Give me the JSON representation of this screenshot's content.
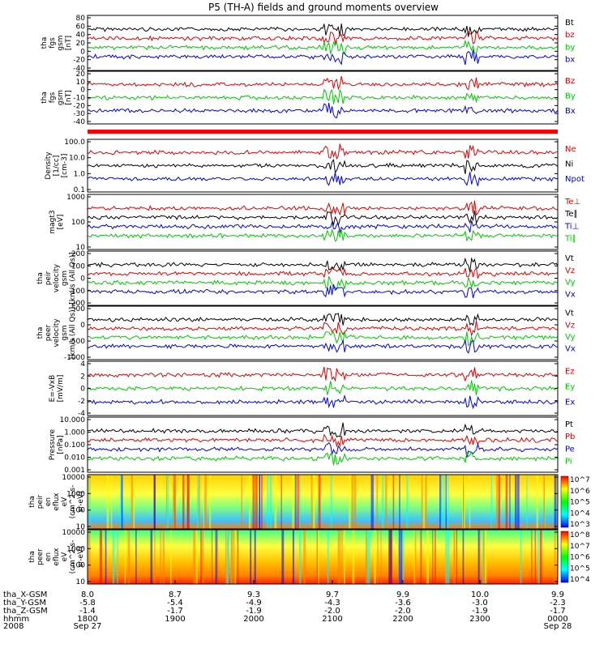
{
  "title": "P5 (TH-A) fields and ground moments overview",
  "colors": {
    "black": "#000000",
    "red": "#e00000",
    "green": "#00c800",
    "blue": "#0000e0",
    "quality_bar": "#ff0000"
  },
  "chart_data": [
    {
      "type": "line",
      "ylabel": [
        "tha",
        "fgs",
        "gsm",
        "[nT]"
      ],
      "ylim": [
        -40,
        80
      ],
      "yticks": [
        "80",
        "60",
        "40",
        "20",
        "0",
        "-20",
        "-40"
      ],
      "series": [
        {
          "name": "Bt",
          "color": "black",
          "level": 55
        },
        {
          "name": "bz",
          "color": "red",
          "level": 50
        },
        {
          "name": "by",
          "color": "green",
          "level": -2
        },
        {
          "name": "bx",
          "color": "blue",
          "level": 10
        }
      ]
    },
    {
      "type": "line",
      "ylabel": [
        "tha",
        "fgs",
        "gsm",
        "[nT]"
      ],
      "ylim": [
        -45,
        20
      ],
      "yticks": [
        "20",
        "10",
        "0",
        "-10",
        "-20",
        "-30",
        "-40"
      ],
      "series": [
        {
          "name": "Bz",
          "color": "red",
          "level": -5
        },
        {
          "name": "By",
          "color": "green",
          "level": 2
        },
        {
          "name": "Bx",
          "color": "blue",
          "level": 0
        }
      ]
    },
    {
      "type": "line",
      "ylabel": [
        "Density",
        "[1/cc]",
        "[cm-3]"
      ],
      "scale": "log",
      "yticks": [
        "100.0",
        "10.0",
        "1.0",
        "0.1"
      ],
      "series": [
        {
          "name": "Ne",
          "color": "red",
          "level": 2
        },
        {
          "name": "Ni",
          "color": "black",
          "level": 0.8
        },
        {
          "name": "Npot",
          "color": "blue",
          "level": 3
        }
      ]
    },
    {
      "type": "line",
      "ylabel": [
        "magt3",
        "[eV]"
      ],
      "scale": "log",
      "yticks": [
        "1000",
        "100",
        "10"
      ],
      "series": [
        {
          "name": "Te⊥",
          "color": "red",
          "level": 500
        },
        {
          "name": "Te∥",
          "color": "black",
          "level": 700
        },
        {
          "name": "Ti⊥",
          "color": "blue",
          "level": 2500
        },
        {
          "name": "Ti∥",
          "color": "green",
          "level": 1500
        }
      ]
    },
    {
      "type": "line",
      "ylabel": [
        "tha",
        "peir",
        "velocity",
        "gsm",
        "[km/s (All Qs)]"
      ],
      "ylim": [
        -200,
        200
      ],
      "yticks": [
        "200",
        "100",
        "0",
        "-100",
        "-200"
      ],
      "series": [
        {
          "name": "Vt",
          "color": "black",
          "level": 20
        },
        {
          "name": "Vz",
          "color": "red",
          "level": 0
        },
        {
          "name": "Vy",
          "color": "green",
          "level": 0
        },
        {
          "name": "Vx",
          "color": "blue",
          "level": 0
        }
      ]
    },
    {
      "type": "line",
      "ylabel": [
        "tha",
        "peer",
        "velocity",
        "gsm",
        "[km/s (All Qs)]"
      ],
      "ylim": [
        -1000,
        500
      ],
      "yticks": [
        "500",
        "0",
        "-500",
        "-1000"
      ],
      "series": [
        {
          "name": "Vt",
          "color": "black",
          "level": 40
        },
        {
          "name": "Vz",
          "color": "red",
          "level": 0
        },
        {
          "name": "Vy",
          "color": "green",
          "level": 0
        },
        {
          "name": "Vx",
          "color": "blue",
          "level": 0
        }
      ]
    },
    {
      "type": "line",
      "ylabel": [
        "E=-VxB",
        "[mV/m]"
      ],
      "ylim": [
        -4,
        4
      ],
      "yticks": [
        "4",
        "2",
        "0",
        "-2",
        "-4"
      ],
      "series": [
        {
          "name": "Ez",
          "color": "red",
          "level": 0
        },
        {
          "name": "Ey",
          "color": "green",
          "level": 0.3
        },
        {
          "name": "Ex",
          "color": "blue",
          "level": -0.2
        }
      ]
    },
    {
      "type": "line",
      "ylabel": [
        "Pressure",
        "[nPa]"
      ],
      "scale": "log",
      "yticks": [
        "10.000",
        "1.000",
        "0.100",
        "0.010",
        "0.001"
      ],
      "series": [
        {
          "name": "Pt",
          "color": "black",
          "level": 1.0
        },
        {
          "name": "Pb",
          "color": "red",
          "level": 0.9
        },
        {
          "name": "Pe",
          "color": "blue",
          "level": 0.1
        },
        {
          "name": "Pi",
          "color": "green",
          "level": 0.02
        }
      ]
    },
    {
      "type": "heatmap",
      "ylabel": [
        "tha",
        "peir",
        "en",
        "eflux",
        "eV",
        "(cm^2-s-",
        "sr-eV)"
      ],
      "yticks": [
        "10000",
        "1000",
        "100",
        "10"
      ],
      "colorbar": [
        "10^7",
        "10^6",
        "10^5",
        "10^4",
        "10^3"
      ]
    },
    {
      "type": "heatmap",
      "ylabel": [
        "tha",
        "peer",
        "en",
        "eflux",
        "eV",
        "(cm^2-s-",
        "sr-eV)"
      ],
      "yticks": [
        "10000",
        "1000",
        "100",
        "10"
      ],
      "colorbar": [
        "10^8",
        "10^7",
        "10^6",
        "10^5",
        "10^4"
      ]
    }
  ],
  "x_axis": {
    "row_labels": [
      "tha_X-GSM",
      "tha_Y-GSM",
      "tha_Z-GSM",
      "hhmm",
      "2008"
    ],
    "ticks": [
      {
        "values": [
          "8.0",
          "-5.8",
          "-1.4",
          "1800",
          "Sep 27"
        ]
      },
      {
        "values": [
          "8.7",
          "-5.4",
          "-1.7",
          "1900",
          ""
        ]
      },
      {
        "values": [
          "9.3",
          "-4.9",
          "-1.9",
          "2000",
          ""
        ]
      },
      {
        "values": [
          "9.7",
          "-4.3",
          "-2.0",
          "2100",
          ""
        ]
      },
      {
        "values": [
          "9.9",
          "-3.6",
          "-2.0",
          "2200",
          ""
        ]
      },
      {
        "values": [
          "10.0",
          "-3.0",
          "-1.9",
          "2300",
          ""
        ]
      },
      {
        "values": [
          "9.9",
          "-2.3",
          "-1.7",
          "0000",
          "Sep 28"
        ]
      }
    ]
  }
}
